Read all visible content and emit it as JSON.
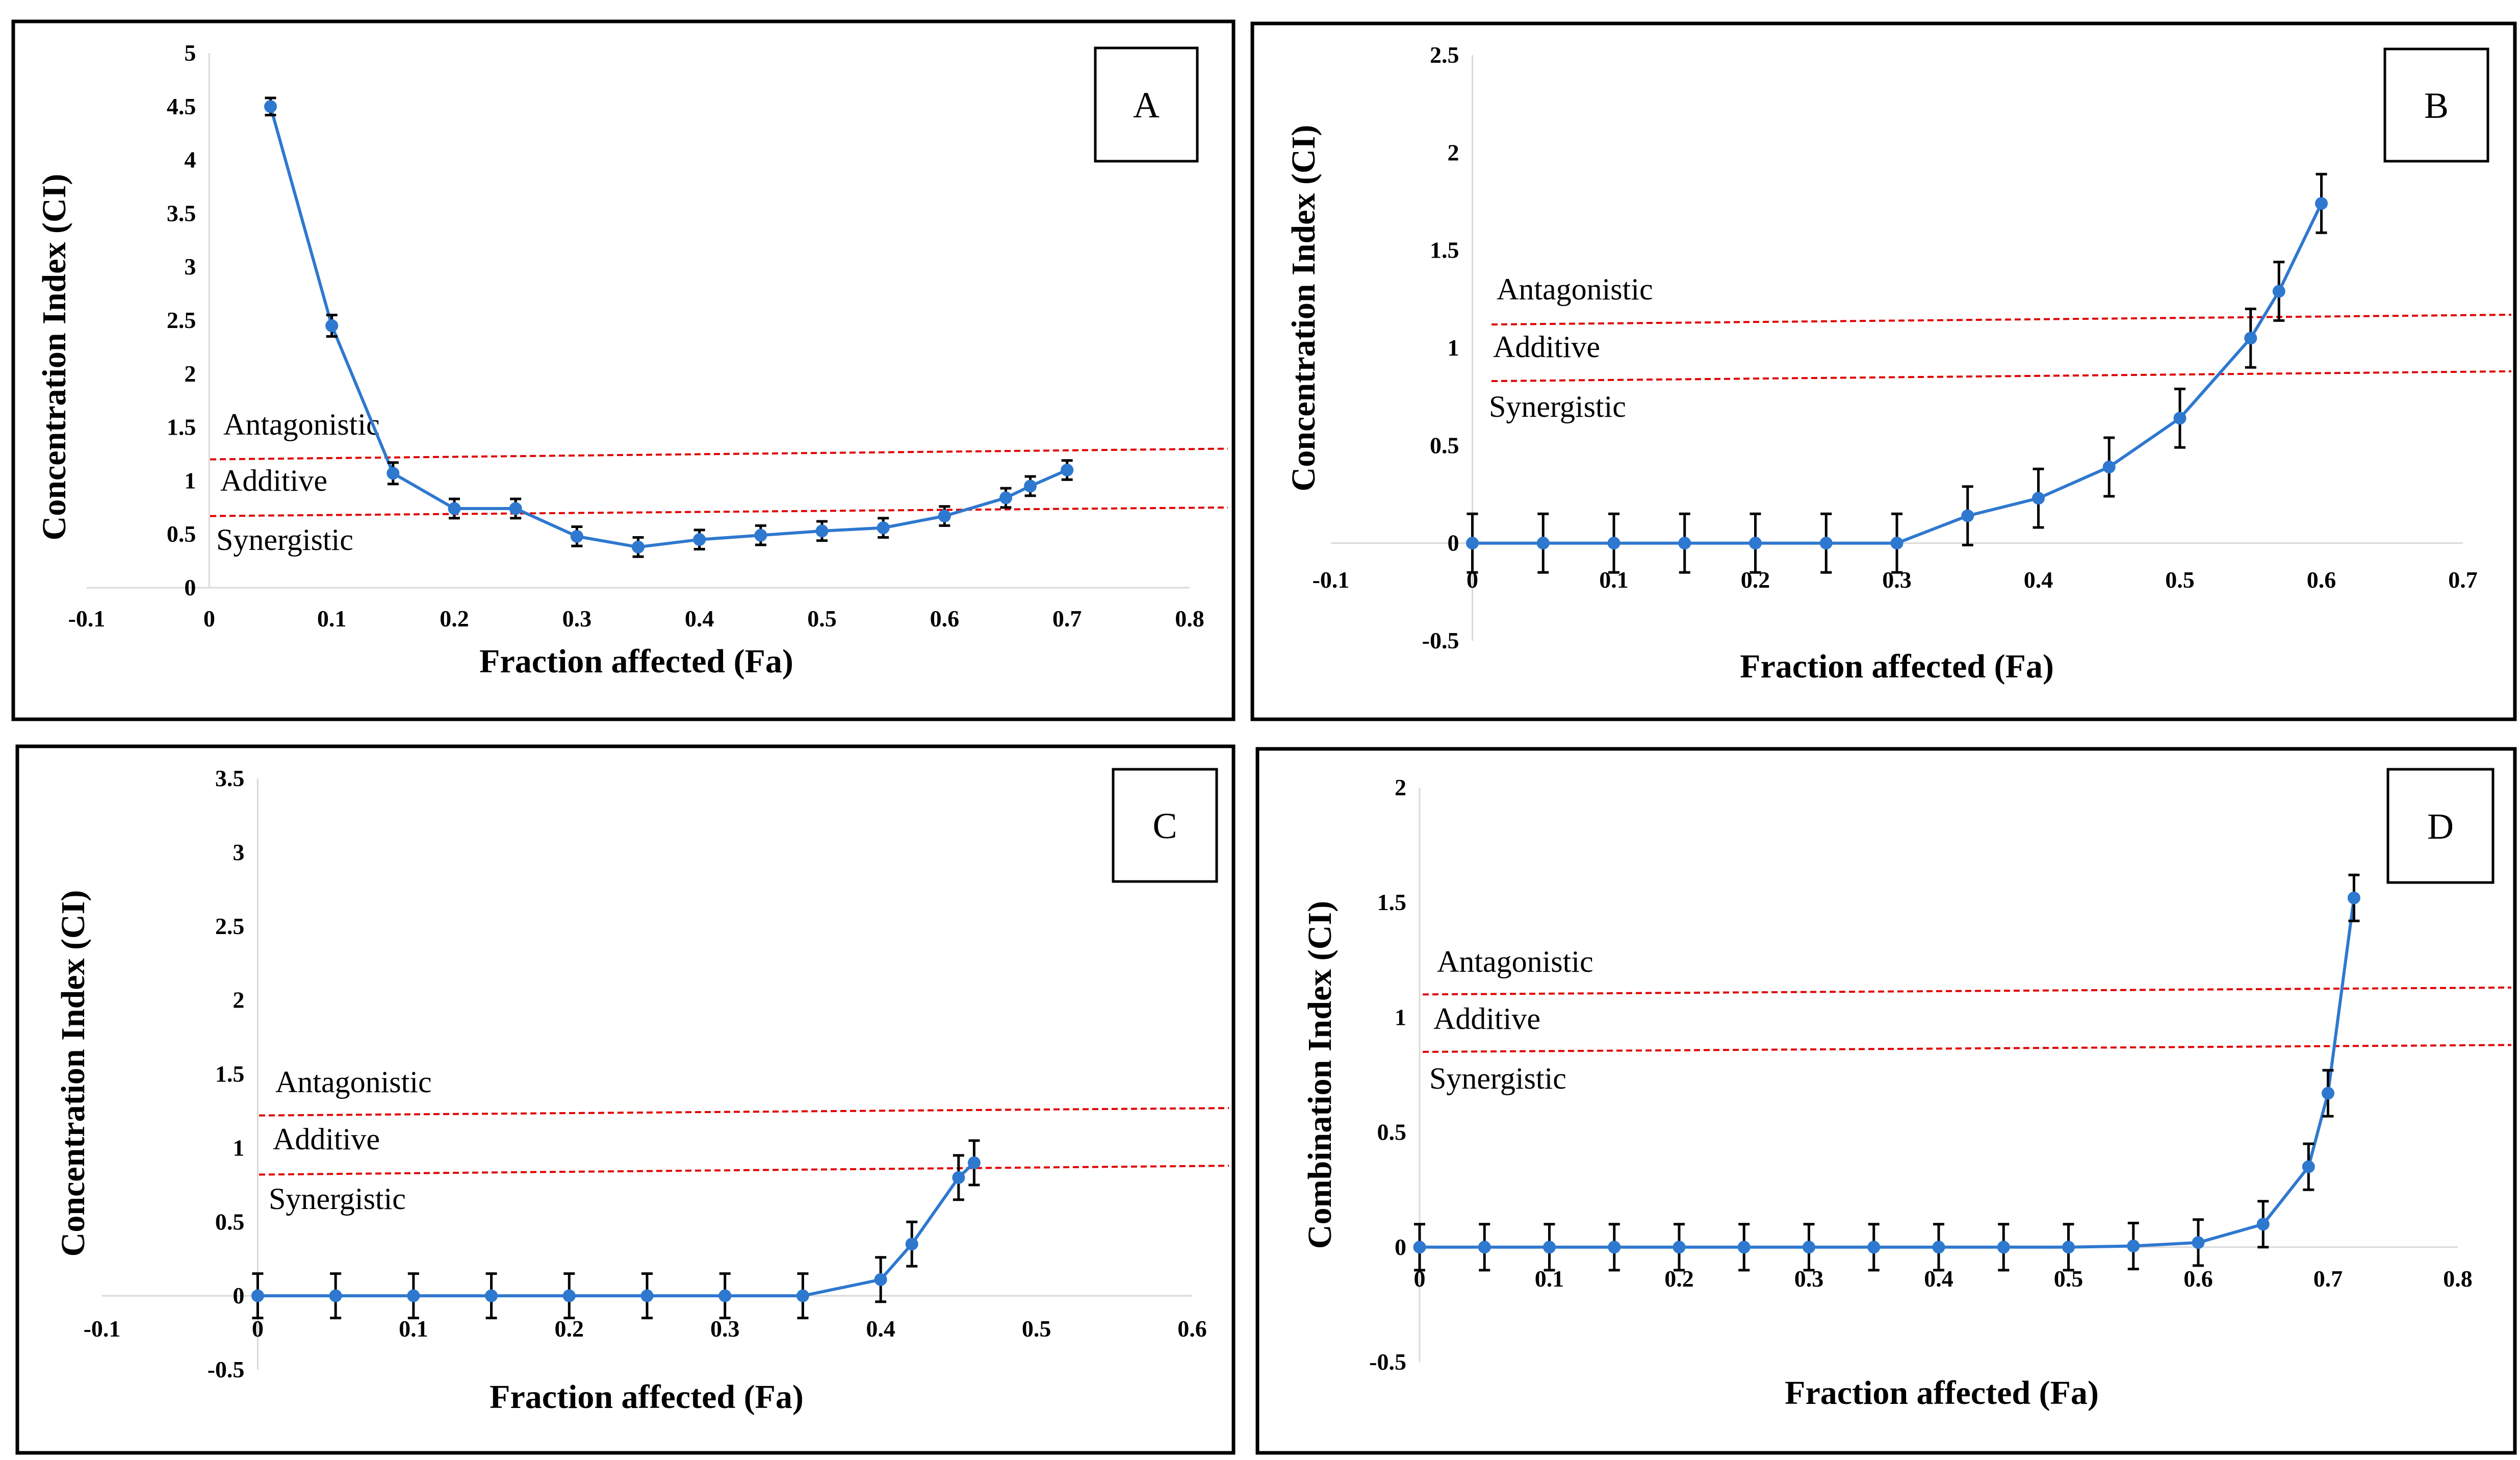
{
  "chart_data": [
    {
      "type": "line",
      "panel_label": "A",
      "xlabel": "Fraction affected (Fa)",
      "ylabel": "Concentration Index (CI)",
      "xlim": [
        -0.1,
        0.8
      ],
      "ylim": [
        0,
        5
      ],
      "x_ticks": [
        "-0.1",
        "0",
        "0.1",
        "0.2",
        "0.3",
        "0.4",
        "0.5",
        "0.6",
        "0.7",
        "0.8"
      ],
      "y_ticks": [
        "0",
        "0.5",
        "1",
        "1.5",
        "2",
        "2.5",
        "3",
        "3.5",
        "4",
        "4.5",
        "5"
      ],
      "regions": [
        "Antagonistic",
        "Additive",
        "Synergistic"
      ],
      "ref_lines": [
        {
          "y0": 1.2,
          "y1": 1.3
        },
        {
          "y0": 0.67,
          "y1": 0.75
        }
      ],
      "series": [
        {
          "x": [
            0.05,
            0.1,
            0.15,
            0.2,
            0.25,
            0.3,
            0.35,
            0.4,
            0.45,
            0.5,
            0.55,
            0.6,
            0.65,
            0.67,
            0.7
          ],
          "y": [
            4.5,
            2.45,
            1.07,
            0.74,
            0.74,
            0.48,
            0.38,
            0.45,
            0.49,
            0.53,
            0.56,
            0.67,
            0.84,
            0.95,
            1.1
          ],
          "err": [
            0.08,
            0.1,
            0.1,
            0.09,
            0.09,
            0.09,
            0.09,
            0.09,
            0.09,
            0.09,
            0.09,
            0.09,
            0.09,
            0.09,
            0.09
          ]
        }
      ]
    },
    {
      "type": "line",
      "panel_label": "B",
      "xlabel": "Fraction affected (Fa)",
      "ylabel": "Concentration Index (CI)",
      "xlim": [
        -0.1,
        0.7
      ],
      "ylim": [
        -0.5,
        2.5
      ],
      "x_ticks": [
        "-0.1",
        "0",
        "0.1",
        "0.2",
        "0.3",
        "0.4",
        "0.5",
        "0.6",
        "0.7"
      ],
      "y_ticks": [
        "-0.5",
        "0",
        "0.5",
        "1",
        "1.5",
        "2",
        "2.5"
      ],
      "regions": [
        "Antagonistic",
        "Additive",
        "Synergistic"
      ],
      "ref_lines": [
        {
          "y0": 1.12,
          "y1": 1.17
        },
        {
          "y0": 0.83,
          "y1": 0.88
        }
      ],
      "series": [
        {
          "x": [
            0,
            0.05,
            0.1,
            0.15,
            0.2,
            0.25,
            0.3,
            0.35,
            0.4,
            0.45,
            0.5,
            0.55,
            0.57,
            0.6
          ],
          "y": [
            0,
            0,
            0,
            0,
            0,
            0,
            0,
            0.14,
            0.23,
            0.39,
            0.64,
            1.05,
            1.29,
            1.74
          ],
          "err": [
            0.15,
            0.15,
            0.15,
            0.15,
            0.15,
            0.15,
            0.15,
            0.15,
            0.15,
            0.15,
            0.15,
            0.15,
            0.15,
            0.15
          ]
        }
      ]
    },
    {
      "type": "line",
      "panel_label": "C",
      "xlabel": "Fraction affected (Fa)",
      "ylabel": "Concentration Index (CI)",
      "xlim": [
        -0.1,
        0.6
      ],
      "ylim": [
        -0.5,
        3.5
      ],
      "x_ticks": [
        "-0.1",
        "0",
        "0.1",
        "0.2",
        "0.3",
        "0.4",
        "0.5",
        "0.6"
      ],
      "y_ticks": [
        "-0.5",
        "0",
        "0.5",
        "1",
        "1.5",
        "2",
        "2.5",
        "3",
        "3.5"
      ],
      "regions": [
        "Antagonistic",
        "Additive",
        "Synergistic"
      ],
      "ref_lines": [
        {
          "y0": 1.22,
          "y1": 1.27
        },
        {
          "y0": 0.82,
          "y1": 0.88
        }
      ],
      "series": [
        {
          "x": [
            0,
            0.05,
            0.1,
            0.15,
            0.2,
            0.25,
            0.3,
            0.35,
            0.4,
            0.42,
            0.45,
            0.46
          ],
          "y": [
            0,
            0,
            0,
            0,
            0,
            0,
            0,
            0,
            0.11,
            0.35,
            0.8,
            0.9
          ],
          "err": [
            0.15,
            0.15,
            0.15,
            0.15,
            0.15,
            0.15,
            0.15,
            0.15,
            0.15,
            0.15,
            0.15,
            0.15
          ]
        }
      ]
    },
    {
      "type": "line",
      "panel_label": "D",
      "xlabel": "Fraction affected (Fa)",
      "ylabel": "Combination Index (CI)",
      "xlim": [
        0,
        0.8
      ],
      "ylim": [
        -0.5,
        2
      ],
      "x_ticks": [
        "0",
        "0.1",
        "0.2",
        "0.3",
        "0.4",
        "0.5",
        "0.6",
        "0.7",
        "0.8"
      ],
      "y_ticks": [
        "-0.5",
        "0",
        "0.5",
        "1",
        "1.5",
        "2"
      ],
      "regions": [
        "Antagonistic",
        "Additive",
        "Synergistic"
      ],
      "ref_lines": [
        {
          "y0": 1.1,
          "y1": 1.13
        },
        {
          "y0": 0.85,
          "y1": 0.88
        }
      ],
      "series": [
        {
          "x": [
            0,
            0.05,
            0.1,
            0.15,
            0.2,
            0.25,
            0.3,
            0.35,
            0.4,
            0.45,
            0.5,
            0.55,
            0.6,
            0.65,
            0.685,
            0.7,
            0.72
          ],
          "y": [
            0,
            0,
            0,
            0,
            0,
            0,
            0,
            0,
            0,
            0,
            0,
            0.005,
            0.02,
            0.1,
            0.35,
            0.67,
            1.52
          ],
          "err": [
            0.1,
            0.1,
            0.1,
            0.1,
            0.1,
            0.1,
            0.1,
            0.1,
            0.1,
            0.1,
            0.1,
            0.1,
            0.1,
            0.1,
            0.1,
            0.1,
            0.1
          ]
        }
      ]
    }
  ]
}
